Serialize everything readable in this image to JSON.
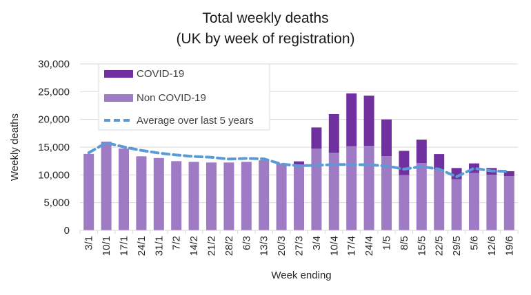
{
  "chart_data": {
    "type": "bar",
    "stacked": true,
    "title": "Total weekly deaths",
    "subtitle": "(UK by week of registration)",
    "xlabel": "Week ending",
    "ylabel": "Weekly deaths",
    "ylim": [
      0,
      30000
    ],
    "yticks": [
      0,
      5000,
      10000,
      15000,
      20000,
      25000,
      30000
    ],
    "ytick_labels": [
      "0",
      "5,000",
      "10,000",
      "15,000",
      "20,000",
      "25,000",
      "30,000"
    ],
    "grid": true,
    "legend_position": "top-left",
    "categories": [
      "3/1",
      "10/1",
      "17/1",
      "24/1",
      "31/1",
      "7/2",
      "14/2",
      "21/2",
      "28/2",
      "6/3",
      "13/3",
      "20/3",
      "27/3",
      "3/4",
      "10/4",
      "17/4",
      "24/4",
      "1/5",
      "8/5",
      "15/5",
      "22/5",
      "29/5",
      "5/6",
      "12/6",
      "19/6"
    ],
    "series": [
      {
        "name": "Non COVID-19",
        "type": "bar",
        "color": "#9E7BC4",
        "values": [
          13780,
          16000,
          14750,
          13350,
          13040,
          12480,
          12350,
          12230,
          12230,
          12350,
          12640,
          12070,
          11860,
          14750,
          14000,
          15170,
          15240,
          13380,
          9960,
          12150,
          10990,
          9220,
          10370,
          10040,
          9790
        ]
      },
      {
        "name": "COVID-19",
        "type": "bar",
        "color": "#7030A0",
        "values": [
          0,
          0,
          0,
          0,
          0,
          0,
          0,
          0,
          0,
          0,
          0,
          0,
          580,
          3800,
          6950,
          9530,
          9050,
          6620,
          4380,
          4210,
          2760,
          2020,
          1700,
          1200,
          870
        ]
      },
      {
        "name": "Average over last 5 years",
        "type": "line",
        "style": "dashed",
        "color": "#5B9BD5",
        "values": [
          14000,
          15790,
          15040,
          14420,
          13930,
          13590,
          13310,
          13180,
          12850,
          12970,
          12890,
          11950,
          11650,
          11730,
          11860,
          11860,
          11820,
          11610,
          11030,
          11520,
          11030,
          9670,
          11200,
          10710,
          10620
        ]
      }
    ],
    "legend": [
      {
        "label": "COVID-19",
        "series": 1
      },
      {
        "label": "Non COVID-19",
        "series": 0
      },
      {
        "label": "Average over last 5 years",
        "series": 2
      }
    ]
  }
}
